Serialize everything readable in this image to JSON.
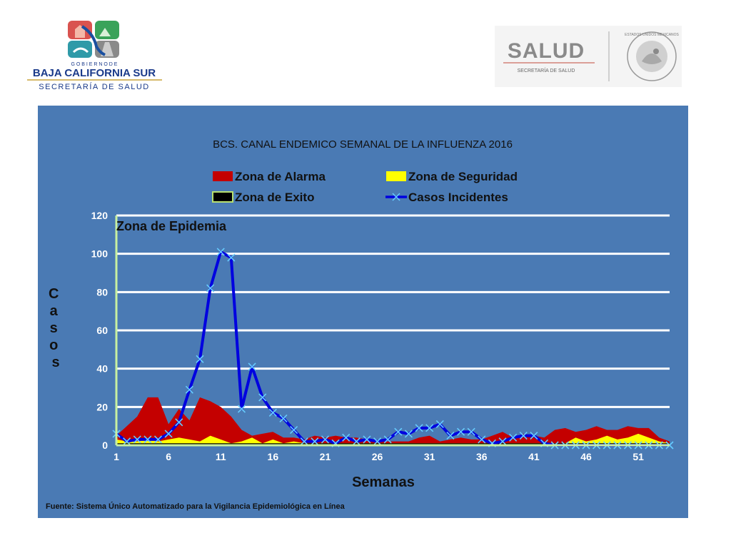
{
  "header": {
    "left_logo": {
      "line1": "G O B I E R N O   D E",
      "line2": "BAJA CALIFORNIA SUR",
      "line3": "SECRETARÍA DE SALUD"
    },
    "right_logo": {
      "brand": "SALUD",
      "sub": "SECRETARÍA DE SALUD",
      "seal_text": "ESTADOS UNIDOS MEXICANOS"
    }
  },
  "colors": {
    "panel": "#4a7ab4",
    "alarma": "#c40000",
    "seguridad": "#ffff00",
    "exito": "#000000",
    "incidentes": "#0000e0",
    "marker": "#66ccff",
    "grid": "#ffffff"
  },
  "chart_data": {
    "type": "area",
    "title": "BCS. CANAL ENDEMICO SEMANAL DE LA INFLUENZA 2016",
    "xlabel": "Semanas",
    "ylabel": "C a s o s",
    "zone_label": "Zona de Epidemia",
    "source": "Fuente: Sistema Único Automatizado para la Vigilancia Epidemiológica en Línea",
    "xlim": [
      1,
      53
    ],
    "ylim": [
      0,
      120
    ],
    "x_ticks": [
      1,
      6,
      11,
      16,
      21,
      26,
      31,
      36,
      41,
      46,
      51
    ],
    "y_ticks": [
      0,
      20,
      40,
      60,
      80,
      100,
      120
    ],
    "legend_position": "top",
    "grid": true,
    "series": [
      {
        "name": "Zona de Alarma",
        "kind": "area",
        "values": [
          5,
          10,
          15,
          25,
          25,
          11,
          19,
          13,
          25,
          23,
          20,
          15,
          8,
          5,
          6,
          7,
          4,
          4,
          3,
          5,
          4,
          5,
          4,
          4,
          3,
          2,
          2,
          2,
          2,
          4,
          5,
          2,
          3,
          4,
          3,
          3,
          5,
          7,
          4,
          6,
          5,
          4,
          8,
          9,
          7,
          8,
          10,
          8,
          8,
          10,
          9,
          9,
          4,
          2
        ]
      },
      {
        "name": "Zona de Seguridad",
        "kind": "area",
        "values": [
          3,
          2,
          2,
          3,
          2,
          3,
          4,
          3,
          2,
          5,
          3,
          1,
          2,
          4,
          1,
          3,
          1,
          2,
          1,
          1,
          1,
          1,
          1,
          1,
          1,
          1,
          1,
          1,
          1,
          1,
          1,
          1,
          1,
          1,
          1,
          1,
          1,
          1,
          1,
          1,
          1,
          1,
          1,
          1,
          4,
          2,
          3,
          5,
          3,
          4,
          6,
          4,
          2,
          1
        ]
      },
      {
        "name": "Zona de Exito",
        "kind": "area",
        "values": [
          1,
          1,
          1,
          1,
          1,
          1,
          1,
          1,
          1,
          1,
          1,
          1,
          1,
          1,
          1,
          1,
          1,
          1,
          1,
          1,
          1,
          1,
          1,
          1,
          1,
          1,
          1,
          1,
          1,
          1,
          1,
          1,
          1,
          1,
          1,
          1,
          1,
          1,
          1,
          1,
          1,
          1,
          1,
          1,
          1,
          1,
          1,
          1,
          1,
          1,
          1,
          1,
          1,
          1
        ]
      },
      {
        "name": "Casos Incidentes",
        "kind": "line",
        "values": [
          6,
          2,
          3,
          3,
          3,
          6,
          12,
          29,
          45,
          82,
          101,
          98,
          19,
          41,
          25,
          17,
          14,
          8,
          2,
          2,
          3,
          1,
          4,
          2,
          3,
          2,
          3,
          7,
          6,
          9,
          9,
          11,
          5,
          7,
          7,
          3,
          1,
          2,
          4,
          5,
          5,
          1,
          0,
          0,
          0,
          0,
          0,
          0,
          0,
          0,
          0,
          0,
          0,
          0
        ]
      }
    ]
  }
}
